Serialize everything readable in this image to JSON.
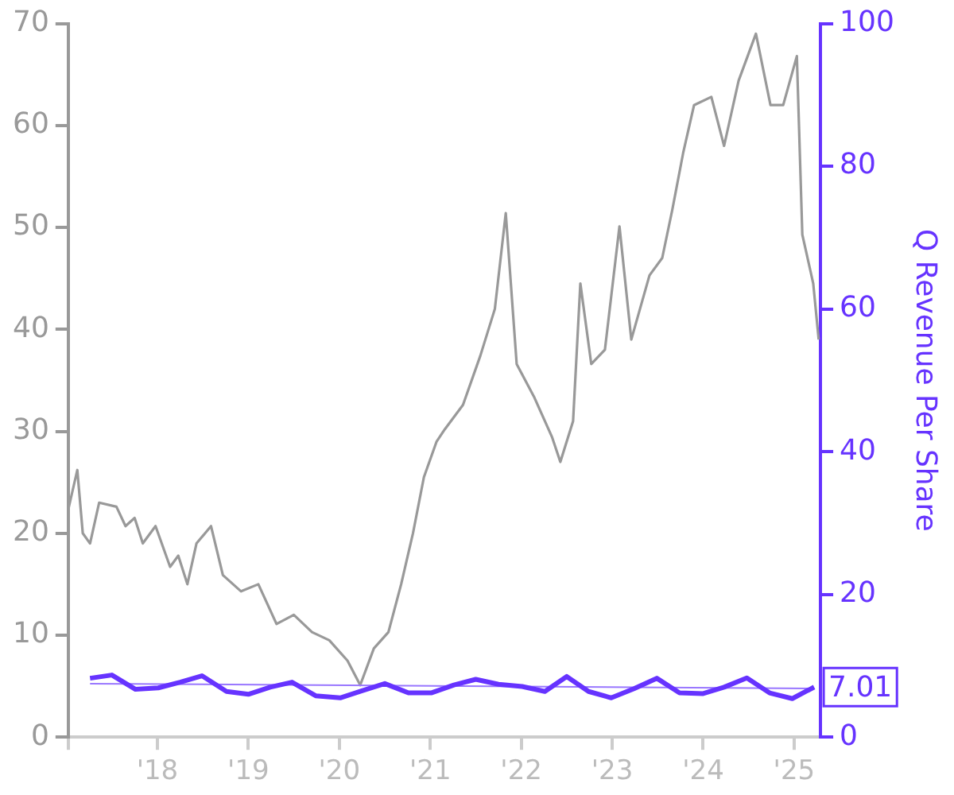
{
  "chart_data": {
    "type": "line",
    "y2label": "Q Revenue Per Share",
    "xlim": [
      2017.02,
      2025.29
    ],
    "xticks": [
      {
        "value": 2017.02,
        "label": null
      },
      {
        "value": 2018,
        "label": "'18"
      },
      {
        "value": 2019,
        "label": "'19"
      },
      {
        "value": 2020,
        "label": "'20"
      },
      {
        "value": 2021,
        "label": "'21"
      },
      {
        "value": 2022,
        "label": "'22"
      },
      {
        "value": 2023,
        "label": "'23"
      },
      {
        "value": 2024,
        "label": "'24"
      },
      {
        "value": 2025,
        "label": "'25"
      }
    ],
    "ylim": [
      0,
      70
    ],
    "yticks": [
      0,
      10,
      20,
      30,
      40,
      50,
      60,
      70
    ],
    "y2lim": [
      0,
      100
    ],
    "y2ticks": [
      0,
      20,
      40,
      60,
      80,
      100
    ],
    "series": [
      {
        "color": "#999999",
        "x": [
          2017.02,
          2017.12,
          2017.18,
          2017.26,
          2017.36,
          2017.55,
          2017.65,
          2017.75,
          2017.84,
          2017.98,
          2018.14,
          2018.23,
          2018.33,
          2018.43,
          2018.59,
          2018.72,
          2018.92,
          2019.11,
          2019.31,
          2019.5,
          2019.7,
          2019.89,
          2020.09,
          2020.23,
          2020.38,
          2020.54,
          2020.68,
          2020.81,
          2020.93,
          2021.07,
          2021.16,
          2021.36,
          2021.55,
          2021.71,
          2021.83,
          2021.95,
          2022.14,
          2022.34,
          2022.43,
          2022.57,
          2022.65,
          2022.77,
          2022.92,
          2023.08,
          2023.21,
          2023.41,
          2023.55,
          2023.66,
          2023.78,
          2023.9,
          2024.09,
          2024.23,
          2024.39,
          2024.58,
          2024.74,
          2024.88,
          2025.03,
          2025.09,
          2025.21,
          2025.27
        ],
        "values": [
          22.3,
          26.2,
          20,
          19,
          23,
          22.6,
          20.7,
          21.5,
          19,
          20.7,
          16.7,
          17.8,
          15,
          19,
          20.7,
          15.9,
          14.3,
          15,
          11.1,
          12,
          10.3,
          9.5,
          7.5,
          5.1,
          8.7,
          10.3,
          15,
          20,
          25.5,
          29,
          30.2,
          32.6,
          37.4,
          42,
          51.4,
          36.6,
          33.4,
          29.4,
          27,
          31,
          44.5,
          36.6,
          38,
          50.1,
          39,
          45.3,
          47,
          51.7,
          57.3,
          62,
          62.8,
          58,
          64.4,
          69,
          62,
          62,
          66.8,
          49.3,
          44.5,
          39
        ]
      },
      {
        "color": "#6633ff",
        "axis": "y2",
        "x": [
          2017.26,
          2017.5,
          2017.76,
          2018.01,
          2018.25,
          2018.49,
          2018.76,
          2019.0,
          2019.24,
          2019.48,
          2019.74,
          2020.01,
          2020.25,
          2020.5,
          2020.76,
          2021.01,
          2021.26,
          2021.5,
          2021.75,
          2022.01,
          2022.26,
          2022.5,
          2022.74,
          2022.99,
          2023.24,
          2023.49,
          2023.74,
          2024.0,
          2024.23,
          2024.48,
          2024.73,
          2024.98,
          2025.22
        ],
        "values": [
          8.25,
          8.7,
          6.7,
          6.9,
          7.7,
          8.6,
          6.4,
          6.0,
          7.0,
          7.7,
          5.8,
          5.5,
          6.5,
          7.5,
          6.2,
          6.2,
          7.3,
          8.1,
          7.4,
          7.1,
          6.4,
          8.5,
          6.4,
          5.5,
          6.8,
          8.25,
          6.2,
          6.1,
          7.0,
          8.3,
          6.2,
          5.4,
          7.01
        ],
        "value_labels": [
          null,
          null,
          null,
          null,
          null,
          null,
          null,
          null,
          null,
          null,
          null,
          null,
          null,
          null,
          null,
          null,
          null,
          null,
          null,
          null,
          null,
          null,
          null,
          null,
          null,
          null,
          null,
          null,
          null,
          null,
          null,
          null,
          "7.01"
        ]
      },
      {
        "type": "line",
        "color": "#9977ff",
        "axis": "y2",
        "x": [
          2017.26,
          2025.22
        ],
        "values": [
          7.5,
          6.8
        ]
      }
    ]
  }
}
